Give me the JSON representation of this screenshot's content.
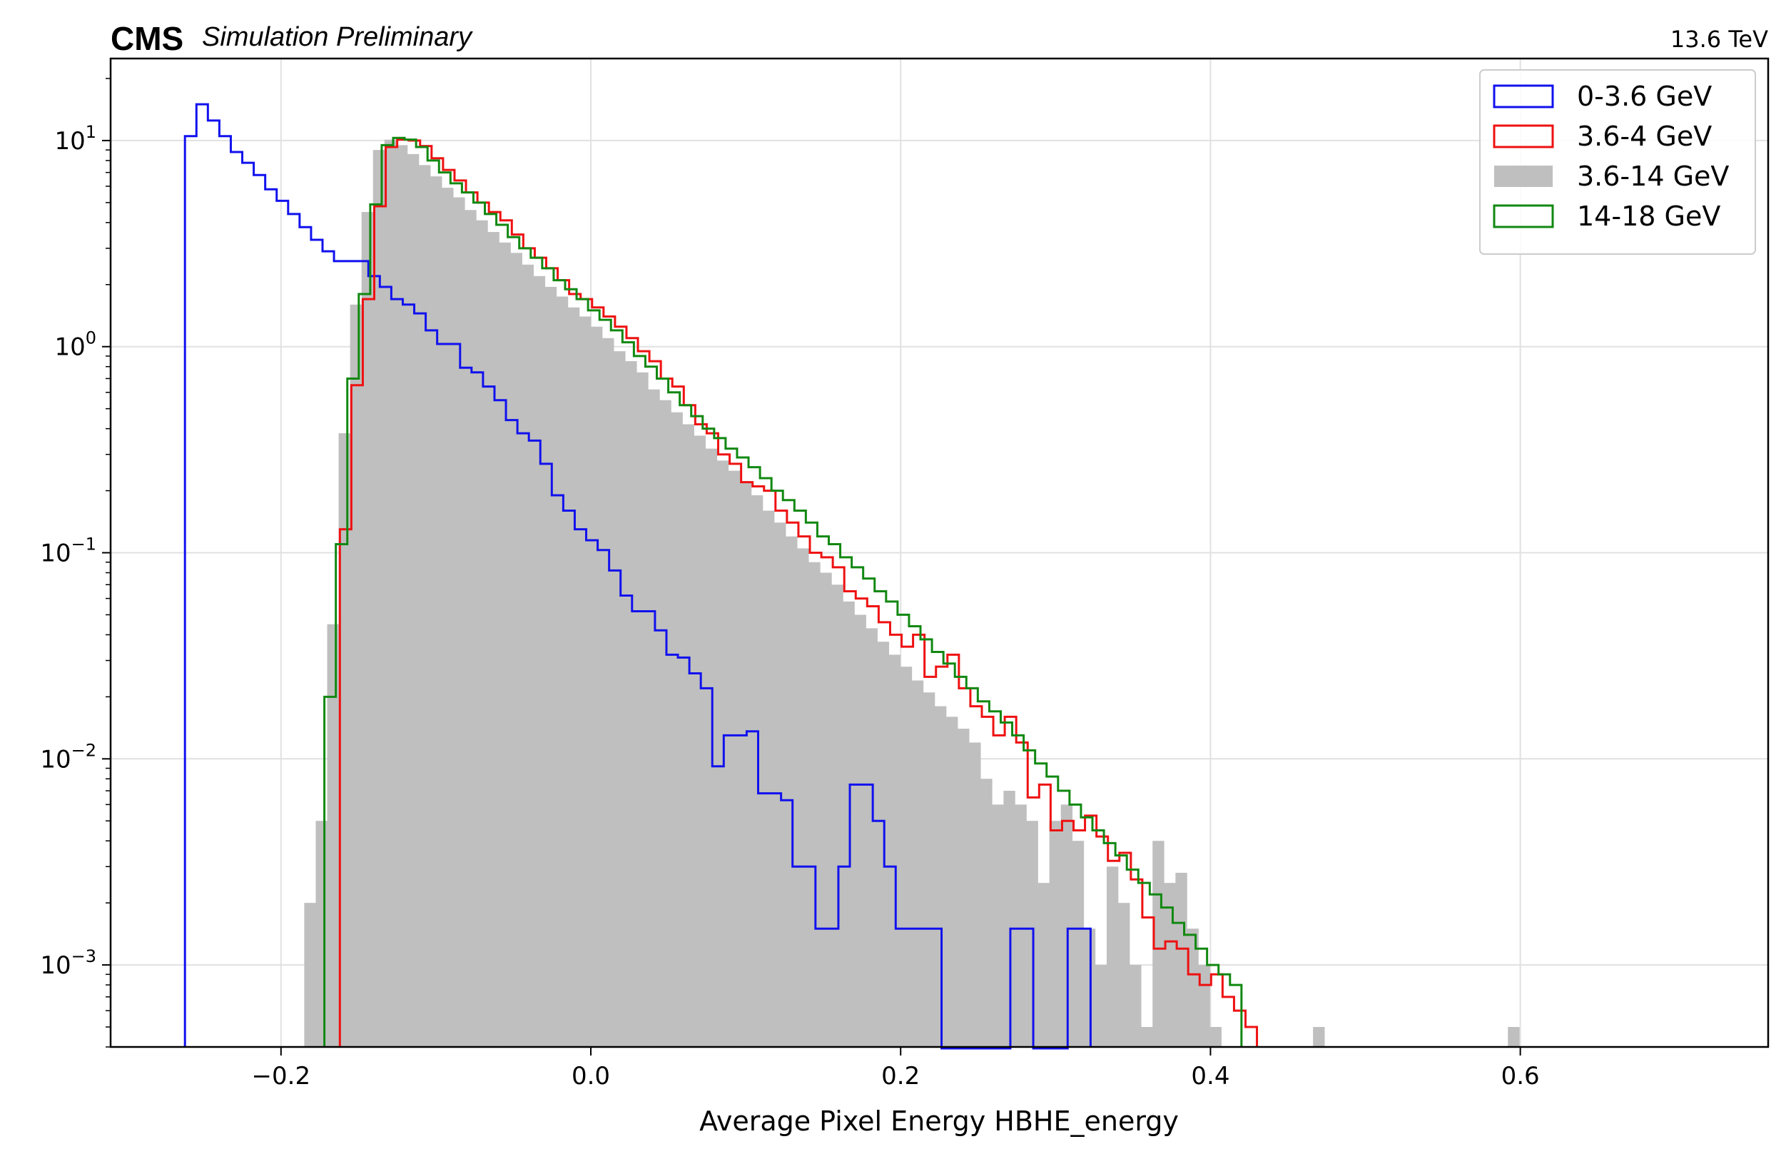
{
  "header": {
    "brand": "CMS",
    "subtitle": "Simulation Preliminary",
    "energy_label": "13.6 TeV"
  },
  "chart_data": {
    "type": "histogram",
    "title": "",
    "xlabel": "Average Pixel Energy HBHE_energy",
    "ylabel": "",
    "xlim": [
      -0.31,
      0.76
    ],
    "ylim": [
      0.0004,
      25
    ],
    "yscale": "log",
    "grid": true,
    "legend_position": "top-right",
    "bin_width": 0.0074,
    "x_ticks": [
      -0.2,
      0.0,
      0.2,
      0.4,
      0.6
    ],
    "x_tick_labels": [
      "−0.2",
      "0.0",
      "0.2",
      "0.4",
      "0.6"
    ],
    "y_ticks": [
      {
        "value": 10,
        "base": "10",
        "exp": "1"
      },
      {
        "value": 1,
        "base": "10",
        "exp": "0"
      },
      {
        "value": 0.1,
        "base": "10",
        "exp": "−1"
      },
      {
        "value": 0.01,
        "base": "10",
        "exp": "−2"
      },
      {
        "value": 0.001,
        "base": "10",
        "exp": "−3"
      }
    ],
    "series": [
      {
        "name": "3.6-14 GeV",
        "style": "filled",
        "color": "#bfbfbf",
        "x_start": -0.185,
        "values": [
          0.002,
          0.005,
          0.045,
          0.38,
          1.6,
          4.5,
          9,
          10.1,
          9.5,
          8.6,
          7.6,
          6.7,
          5.9,
          5.3,
          4.6,
          4.1,
          3.6,
          3.2,
          2.85,
          2.5,
          2.2,
          1.95,
          1.75,
          1.55,
          1.4,
          1.25,
          1.1,
          0.95,
          0.85,
          0.75,
          0.62,
          0.55,
          0.48,
          0.42,
          0.37,
          0.32,
          0.28,
          0.25,
          0.22,
          0.19,
          0.16,
          0.14,
          0.12,
          0.105,
          0.09,
          0.08,
          0.07,
          0.058,
          0.05,
          0.043,
          0.037,
          0.032,
          0.028,
          0.024,
          0.021,
          0.018,
          0.016,
          0.014,
          0.012,
          0.008,
          0.006,
          0.007,
          0.006,
          0.005,
          0.0025,
          0.005,
          0.006,
          0.004,
          0.0015,
          0.001,
          0.003,
          0.002,
          0.001,
          0.0005,
          0.004,
          0.0025,
          0.0028,
          0.0015,
          0.001,
          0.0005,
          0,
          0,
          0,
          0,
          0,
          0,
          0,
          0,
          0.0005,
          0,
          0,
          0,
          0,
          0,
          0,
          0,
          0,
          0,
          0,
          0,
          0,
          0,
          0,
          0,
          0,
          0.0005
        ]
      },
      {
        "name": "0-3.6 GeV",
        "style": "step",
        "color": "#1111ee",
        "x_start": -0.262,
        "values": [
          10.5,
          15,
          12.5,
          10.5,
          8.8,
          7.8,
          6.8,
          5.8,
          5.1,
          4.4,
          3.8,
          3.3,
          2.9,
          2.6,
          2.6,
          2.6,
          2.2,
          1.95,
          1.7,
          1.6,
          1.45,
          1.2,
          1.03,
          1.03,
          0.79,
          0.75,
          0.64,
          0.55,
          0.44,
          0.38,
          0.35,
          0.27,
          0.19,
          0.16,
          0.13,
          0.115,
          0.103,
          0.082,
          0.062,
          0.052,
          0.052,
          0.042,
          0.032,
          0.031,
          0.026,
          0.022,
          0.0092,
          0.013,
          0.013,
          0.0136,
          0.0068,
          0.0068,
          0.0063,
          0.003,
          0.003,
          0.0015,
          0.0015,
          0.003,
          0.0075,
          0.0075,
          0.005,
          0.003,
          0.0015,
          0.0015,
          0.0015,
          0.0015,
          0,
          0,
          0,
          0,
          0,
          0,
          0.0015,
          0.0015,
          0,
          0,
          0,
          0.0015,
          0.0015
        ]
      },
      {
        "name": "3.6-4 GeV",
        "style": "step",
        "color": "#ee1111",
        "x_start": -0.162,
        "values": [
          0.13,
          0.65,
          1.7,
          4.8,
          9.3,
          10.1,
          10,
          9.4,
          8.2,
          7.2,
          6.4,
          5.6,
          5,
          4.5,
          4.1,
          3.5,
          3,
          2.7,
          2.4,
          2.1,
          1.8,
          1.7,
          1.55,
          1.4,
          1.25,
          1.1,
          0.95,
          0.85,
          0.7,
          0.64,
          0.52,
          0.42,
          0.38,
          0.3,
          0.27,
          0.22,
          0.21,
          0.2,
          0.16,
          0.14,
          0.12,
          0.1,
          0.095,
          0.085,
          0.065,
          0.06,
          0.055,
          0.046,
          0.04,
          0.035,
          0.04,
          0.025,
          0.028,
          0.032,
          0.022,
          0.018,
          0.016,
          0.013,
          0.016,
          0.012,
          0.0065,
          0.0075,
          0.0045,
          0.005,
          0.0045,
          0.0053,
          0.0042,
          0.0032,
          0.0035,
          0.0026,
          0.0017,
          0.0012,
          0.0013,
          0.0012,
          0.0009,
          0.0008,
          0.0009,
          0.0007,
          0.0006,
          0.0005
        ]
      },
      {
        "name": "14-18 GeV",
        "style": "step",
        "color": "#118811",
        "x_start": -0.172,
        "values": [
          0.02,
          0.11,
          0.7,
          1.8,
          4.9,
          9.5,
          10.3,
          10.1,
          9.3,
          8,
          7,
          6.2,
          5.6,
          5,
          4.4,
          3.9,
          3.4,
          3,
          2.7,
          2.4,
          2.1,
          1.9,
          1.7,
          1.5,
          1.35,
          1.2,
          1.05,
          0.9,
          0.8,
          0.7,
          0.6,
          0.52,
          0.46,
          0.4,
          0.36,
          0.32,
          0.29,
          0.26,
          0.23,
          0.2,
          0.18,
          0.16,
          0.14,
          0.12,
          0.11,
          0.095,
          0.085,
          0.075,
          0.065,
          0.058,
          0.05,
          0.044,
          0.038,
          0.033,
          0.029,
          0.025,
          0.022,
          0.019,
          0.017,
          0.015,
          0.013,
          0.011,
          0.0095,
          0.0082,
          0.007,
          0.006,
          0.0052,
          0.0045,
          0.0039,
          0.0034,
          0.0029,
          0.0025,
          0.0022,
          0.0019,
          0.0016,
          0.0014,
          0.0012,
          0.001,
          0.0009,
          0.0008
        ]
      }
    ]
  }
}
